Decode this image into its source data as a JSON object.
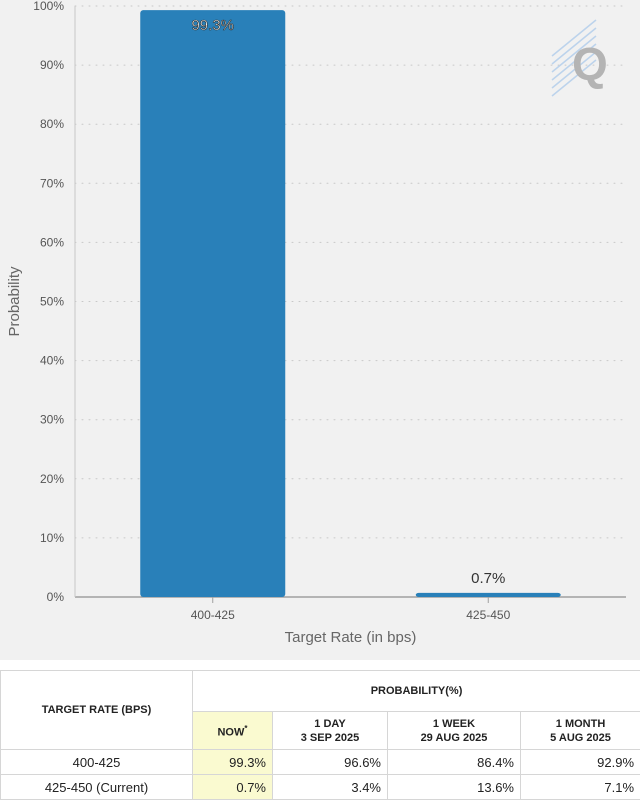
{
  "chart_data": {
    "type": "bar",
    "categories": [
      "400-425",
      "425-450"
    ],
    "values": [
      99.3,
      0.7
    ],
    "data_labels": [
      "99.3%",
      "0.7%"
    ],
    "xlabel": "Target Rate (in bps)",
    "ylabel": "Probability",
    "ylim": [
      0,
      100
    ],
    "yticks": [
      "0%",
      "10%",
      "20%",
      "30%",
      "40%",
      "50%",
      "60%",
      "70%",
      "80%",
      "90%",
      "100%"
    ],
    "grid": true,
    "bar_color": "#2980b9"
  },
  "table": {
    "target_rate_header": "TARGET RATE (BPS)",
    "probability_header": "PROBABILITY(%)",
    "columns": [
      {
        "line1": "NOW",
        "line2": "",
        "sup": "*"
      },
      {
        "line1": "1 DAY",
        "line2": "3 SEP 2025",
        "sup": ""
      },
      {
        "line1": "1 WEEK",
        "line2": "29 AUG 2025",
        "sup": ""
      },
      {
        "line1": "1 MONTH",
        "line2": "5 AUG 2025",
        "sup": ""
      }
    ],
    "rows": [
      {
        "label": "400-425",
        "values": [
          "99.3%",
          "96.6%",
          "86.4%",
          "92.9%"
        ]
      },
      {
        "label": "425-450 (Current)",
        "values": [
          "0.7%",
          "3.4%",
          "13.6%",
          "7.1%"
        ]
      }
    ]
  }
}
